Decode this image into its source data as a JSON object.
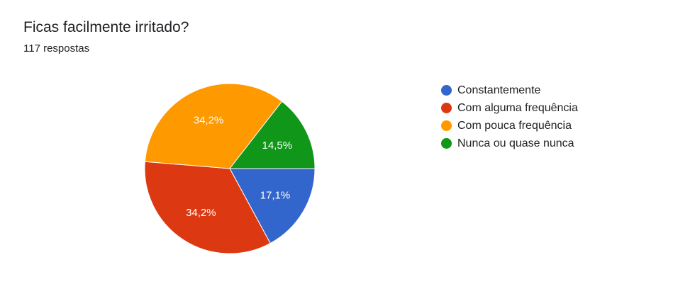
{
  "header": {
    "title": "Ficas facilmente irritado?",
    "response_count": "117 respostas"
  },
  "chart_data": {
    "type": "pie",
    "title": "Ficas facilmente irritado?",
    "categories": [
      "Constantemente",
      "Com alguma frequência",
      "Com pouca frequência",
      "Nunca ou quase nunca"
    ],
    "values": [
      17.1,
      34.2,
      34.2,
      14.5
    ],
    "labels": [
      "17,1%",
      "34,2%",
      "34,2%",
      "14,5%"
    ],
    "colors": [
      "#3366cc",
      "#dc3912",
      "#ff9900",
      "#109618"
    ],
    "legend_placement": "right"
  }
}
